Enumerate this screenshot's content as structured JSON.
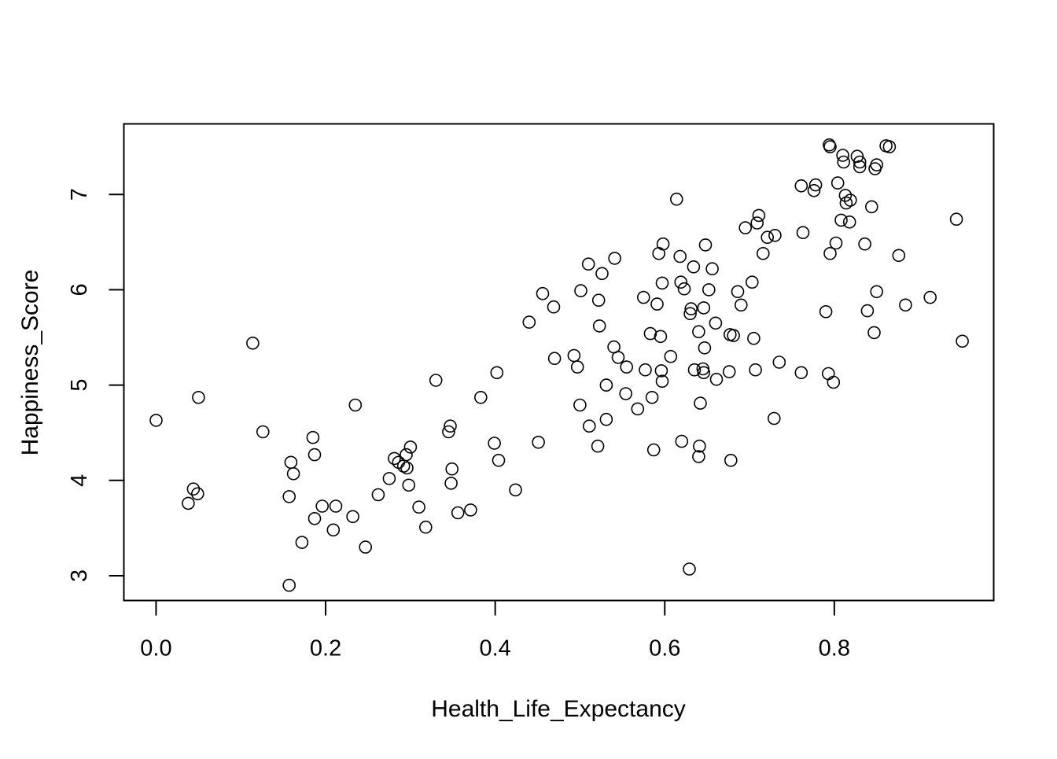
{
  "chart_data": {
    "type": "scatter",
    "title": "",
    "xlabel": "Health_Life_Expectancy",
    "ylabel": "Happiness_Score",
    "xlim": [
      -0.038,
      0.988
    ],
    "ylim": [
      2.74,
      7.74
    ],
    "x_ticks": [
      0.0,
      0.2,
      0.4,
      0.6,
      0.8
    ],
    "x_tick_labels": [
      "0.0",
      "0.2",
      "0.4",
      "0.6",
      "0.8"
    ],
    "y_ticks": [
      3,
      4,
      5,
      6,
      7
    ],
    "y_tick_labels": [
      "3",
      "4",
      "5",
      "6",
      "7"
    ],
    "grid": false,
    "marker": "open-circle",
    "point_color": "#000000",
    "points": [
      [
        0.0,
        4.63
      ],
      [
        0.038,
        3.76
      ],
      [
        0.044,
        3.91
      ],
      [
        0.049,
        3.86
      ],
      [
        0.05,
        4.87
      ],
      [
        0.114,
        5.44
      ],
      [
        0.126,
        4.51
      ],
      [
        0.157,
        2.9
      ],
      [
        0.157,
        3.83
      ],
      [
        0.159,
        4.19
      ],
      [
        0.162,
        4.07
      ],
      [
        0.172,
        3.35
      ],
      [
        0.185,
        4.45
      ],
      [
        0.187,
        3.6
      ],
      [
        0.187,
        4.27
      ],
      [
        0.196,
        3.73
      ],
      [
        0.209,
        3.48
      ],
      [
        0.212,
        3.73
      ],
      [
        0.232,
        3.62
      ],
      [
        0.235,
        4.79
      ],
      [
        0.247,
        3.3
      ],
      [
        0.262,
        3.85
      ],
      [
        0.275,
        4.02
      ],
      [
        0.281,
        4.23
      ],
      [
        0.286,
        4.19
      ],
      [
        0.292,
        4.15
      ],
      [
        0.295,
        4.27
      ],
      [
        0.296,
        4.13
      ],
      [
        0.298,
        3.95
      ],
      [
        0.3,
        4.35
      ],
      [
        0.31,
        3.72
      ],
      [
        0.318,
        3.51
      ],
      [
        0.33,
        5.05
      ],
      [
        0.345,
        4.51
      ],
      [
        0.347,
        4.57
      ],
      [
        0.348,
        3.97
      ],
      [
        0.349,
        4.12
      ],
      [
        0.356,
        3.66
      ],
      [
        0.371,
        3.69
      ],
      [
        0.383,
        4.87
      ],
      [
        0.399,
        4.39
      ],
      [
        0.402,
        5.13
      ],
      [
        0.404,
        4.21
      ],
      [
        0.424,
        3.9
      ],
      [
        0.44,
        5.66
      ],
      [
        0.451,
        4.4
      ],
      [
        0.456,
        5.96
      ],
      [
        0.469,
        5.82
      ],
      [
        0.47,
        5.28
      ],
      [
        0.493,
        5.31
      ],
      [
        0.497,
        5.19
      ],
      [
        0.5,
        4.79
      ],
      [
        0.501,
        5.99
      ],
      [
        0.51,
        6.27
      ],
      [
        0.511,
        4.57
      ],
      [
        0.521,
        4.36
      ],
      [
        0.522,
        5.89
      ],
      [
        0.523,
        5.62
      ],
      [
        0.526,
        6.17
      ],
      [
        0.531,
        4.64
      ],
      [
        0.531,
        5.0
      ],
      [
        0.54,
        5.4
      ],
      [
        0.541,
        6.33
      ],
      [
        0.545,
        5.29
      ],
      [
        0.554,
        4.91
      ],
      [
        0.555,
        5.19
      ],
      [
        0.568,
        4.75
      ],
      [
        0.575,
        5.92
      ],
      [
        0.577,
        5.16
      ],
      [
        0.583,
        5.54
      ],
      [
        0.585,
        4.87
      ],
      [
        0.587,
        4.32
      ],
      [
        0.591,
        5.85
      ],
      [
        0.593,
        6.38
      ],
      [
        0.595,
        5.51
      ],
      [
        0.596,
        5.15
      ],
      [
        0.597,
        5.04
      ],
      [
        0.597,
        6.07
      ],
      [
        0.598,
        6.48
      ],
      [
        0.607,
        5.3
      ],
      [
        0.614,
        6.95
      ],
      [
        0.618,
        6.35
      ],
      [
        0.619,
        6.08
      ],
      [
        0.62,
        4.41
      ],
      [
        0.623,
        6.01
      ],
      [
        0.629,
        3.07
      ],
      [
        0.63,
        5.75
      ],
      [
        0.631,
        5.8
      ],
      [
        0.634,
        6.24
      ],
      [
        0.635,
        5.16
      ],
      [
        0.64,
        5.56
      ],
      [
        0.64,
        4.25
      ],
      [
        0.641,
        4.36
      ],
      [
        0.642,
        4.81
      ],
      [
        0.645,
        5.17
      ],
      [
        0.646,
        5.13
      ],
      [
        0.646,
        5.81
      ],
      [
        0.647,
        5.39
      ],
      [
        0.648,
        6.47
      ],
      [
        0.652,
        6.0
      ],
      [
        0.656,
        6.22
      ],
      [
        0.66,
        5.65
      ],
      [
        0.661,
        5.06
      ],
      [
        0.676,
        5.14
      ],
      [
        0.677,
        5.53
      ],
      [
        0.678,
        4.21
      ],
      [
        0.681,
        5.52
      ],
      [
        0.686,
        5.98
      ],
      [
        0.69,
        5.84
      ],
      [
        0.695,
        6.65
      ],
      [
        0.703,
        6.08
      ],
      [
        0.705,
        5.49
      ],
      [
        0.707,
        5.16
      ],
      [
        0.709,
        6.7
      ],
      [
        0.711,
        6.78
      ],
      [
        0.716,
        6.38
      ],
      [
        0.721,
        6.55
      ],
      [
        0.729,
        4.65
      ],
      [
        0.73,
        6.57
      ],
      [
        0.735,
        5.24
      ],
      [
        0.761,
        7.09
      ],
      [
        0.761,
        5.13
      ],
      [
        0.763,
        6.6
      ],
      [
        0.776,
        7.04
      ],
      [
        0.778,
        7.1
      ],
      [
        0.79,
        5.77
      ],
      [
        0.793,
        5.12
      ],
      [
        0.794,
        7.52
      ],
      [
        0.795,
        6.38
      ],
      [
        0.795,
        7.5
      ],
      [
        0.799,
        5.03
      ],
      [
        0.802,
        6.49
      ],
      [
        0.804,
        7.12
      ],
      [
        0.808,
        6.73
      ],
      [
        0.81,
        7.41
      ],
      [
        0.811,
        7.34
      ],
      [
        0.813,
        6.99
      ],
      [
        0.814,
        6.91
      ],
      [
        0.818,
        6.71
      ],
      [
        0.819,
        6.94
      ],
      [
        0.827,
        7.4
      ],
      [
        0.83,
        7.34
      ],
      [
        0.83,
        7.29
      ],
      [
        0.836,
        6.48
      ],
      [
        0.839,
        5.78
      ],
      [
        0.844,
        6.87
      ],
      [
        0.847,
        5.55
      ],
      [
        0.848,
        7.27
      ],
      [
        0.85,
        7.31
      ],
      [
        0.85,
        5.98
      ],
      [
        0.861,
        7.51
      ],
      [
        0.865,
        7.5
      ],
      [
        0.876,
        6.36
      ],
      [
        0.884,
        5.84
      ],
      [
        0.913,
        5.92
      ],
      [
        0.944,
        6.74
      ],
      [
        0.951,
        5.46
      ]
    ]
  }
}
